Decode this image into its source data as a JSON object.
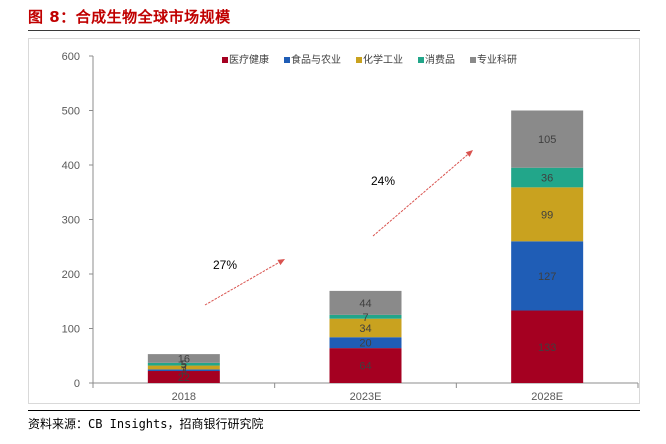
{
  "figure": {
    "title": "图 8：合成生物全球市场规模",
    "source": "资料来源：CB Insights，招商银行研究院"
  },
  "chart_data": {
    "type": "bar",
    "stacked": true,
    "categories": [
      "2018",
      "2023E",
      "2028E"
    ],
    "series": [
      {
        "name": "医疗健康",
        "color": "#a50021",
        "values": [
          22,
          64,
          133
        ]
      },
      {
        "name": "食品与农业",
        "color": "#1f5db6",
        "values": [
          3,
          20,
          127
        ]
      },
      {
        "name": "化学工业",
        "color": "#c9a21f",
        "values": [
          7,
          34,
          99
        ]
      },
      {
        "name": "消费品",
        "color": "#22a68a",
        "values": [
          5,
          7,
          36
        ]
      },
      {
        "name": "专业科研",
        "color": "#8a8a8a",
        "values": [
          16,
          44,
          105
        ]
      }
    ],
    "ylim": [
      0,
      600
    ],
    "yticks": [
      0,
      100,
      200,
      300,
      400,
      500,
      600
    ],
    "grid": false,
    "legend": "top",
    "annotations": [
      {
        "text": "27%",
        "from": "2018",
        "to": "2023E",
        "color": "#d9534f"
      },
      {
        "text": "24%",
        "from": "2023E",
        "to": "2028E",
        "color": "#d9534f"
      }
    ]
  }
}
